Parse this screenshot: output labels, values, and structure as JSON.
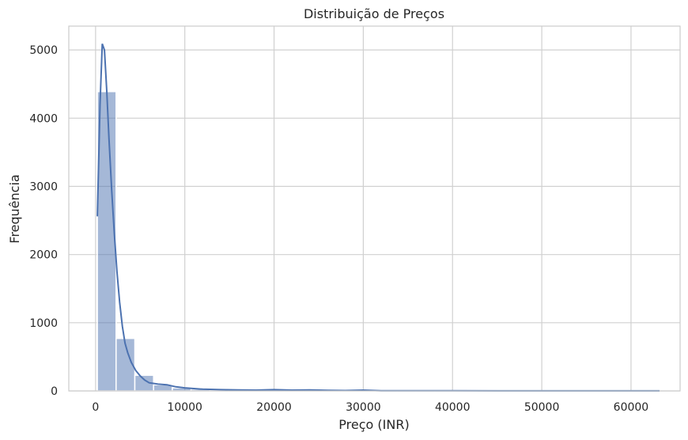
{
  "chart_data": {
    "type": "bar",
    "title": "Distribuição de Preços",
    "xlabel": "Preço (INR)",
    "ylabel": "Frequência",
    "xlim": [
      -3000,
      65500
    ],
    "ylim": [
      0,
      5350
    ],
    "xticks": [
      0,
      10000,
      20000,
      30000,
      40000,
      50000,
      60000
    ],
    "yticks": [
      0,
      1000,
      2000,
      3000,
      4000,
      5000
    ],
    "grid": true,
    "bin_width": 2100,
    "bins": [
      {
        "x0": 200,
        "x1": 2300,
        "count": 4390
      },
      {
        "x0": 2300,
        "x1": 4400,
        "count": 770
      },
      {
        "x0": 4400,
        "x1": 6500,
        "count": 230
      },
      {
        "x0": 6500,
        "x1": 8600,
        "count": 90
      },
      {
        "x0": 8600,
        "x1": 10700,
        "count": 45
      },
      {
        "x0": 10700,
        "x1": 12800,
        "count": 25
      },
      {
        "x0": 12800,
        "x1": 14900,
        "count": 15
      },
      {
        "x0": 14900,
        "x1": 17000,
        "count": 10
      },
      {
        "x0": 17000,
        "x1": 19100,
        "count": 8
      },
      {
        "x0": 19100,
        "x1": 21200,
        "count": 15
      },
      {
        "x0": 21200,
        "x1": 23300,
        "count": 8
      },
      {
        "x0": 23300,
        "x1": 25400,
        "count": 12
      },
      {
        "x0": 25400,
        "x1": 27500,
        "count": 5
      },
      {
        "x0": 27500,
        "x1": 29600,
        "count": 4
      },
      {
        "x0": 29600,
        "x1": 31700,
        "count": 10
      },
      {
        "x0": 31700,
        "x1": 33800,
        "count": 3
      },
      {
        "x0": 33800,
        "x1": 35900,
        "count": 2
      },
      {
        "x0": 35900,
        "x1": 38000,
        "count": 2
      },
      {
        "x0": 38000,
        "x1": 40100,
        "count": 1
      },
      {
        "x0": 40100,
        "x1": 42200,
        "count": 1
      },
      {
        "x0": 42200,
        "x1": 44300,
        "count": 1
      },
      {
        "x0": 44300,
        "x1": 46400,
        "count": 1
      },
      {
        "x0": 46400,
        "x1": 48500,
        "count": 1
      },
      {
        "x0": 48500,
        "x1": 50600,
        "count": 1
      },
      {
        "x0": 50600,
        "x1": 52700,
        "count": 1
      },
      {
        "x0": 52700,
        "x1": 54800,
        "count": 1
      },
      {
        "x0": 54800,
        "x1": 56900,
        "count": 1
      },
      {
        "x0": 56900,
        "x1": 59000,
        "count": 1
      },
      {
        "x0": 59000,
        "x1": 61100,
        "count": 1
      },
      {
        "x0": 61100,
        "x1": 63200,
        "count": 1
      }
    ],
    "kde": {
      "x": [
        200,
        500,
        750,
        1000,
        1250,
        1500,
        1800,
        2100,
        2400,
        2700,
        3000,
        3300,
        3600,
        4000,
        4500,
        5000,
        5500,
        6000,
        7000,
        8000,
        9000,
        10000,
        11000,
        12000,
        14000,
        16000,
        18000,
        20000,
        22000,
        24000,
        26000,
        28000,
        30000,
        32000,
        35000,
        40000,
        45000,
        50000,
        55000,
        60000,
        63200
      ],
      "y": [
        2560,
        4200,
        5090,
        5000,
        4400,
        3700,
        2950,
        2300,
        1750,
        1300,
        950,
        700,
        560,
        420,
        300,
        220,
        160,
        120,
        100,
        90,
        60,
        45,
        35,
        25,
        18,
        15,
        12,
        18,
        12,
        15,
        8,
        6,
        12,
        4,
        3,
        2,
        1,
        1,
        1,
        1,
        1
      ]
    },
    "bar_color": "#4c72b0",
    "bar_opacity": 0.5,
    "line_color": "#4c72b0",
    "grid_color": "#d0d0d0",
    "spine_color": "#cccccc"
  }
}
